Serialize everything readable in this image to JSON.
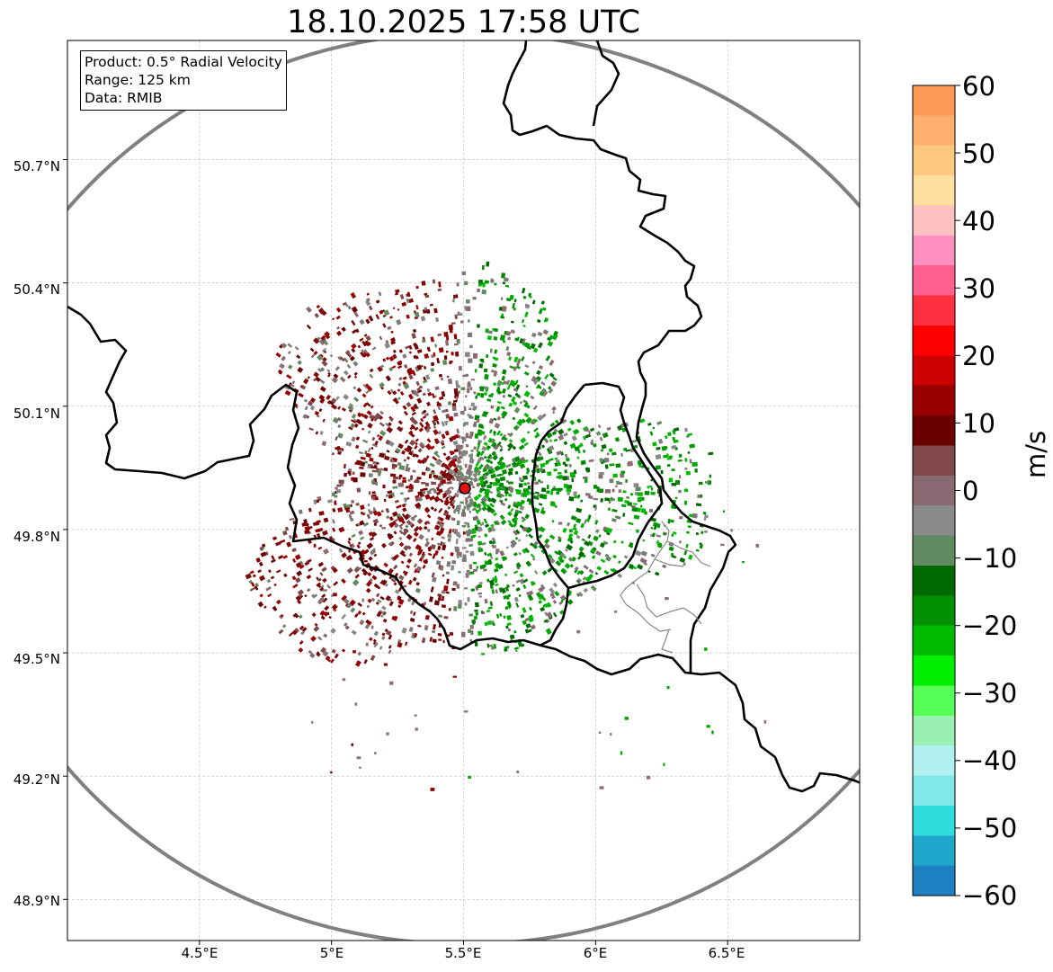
{
  "title": "18.10.2025 17:58 UTC",
  "info": {
    "product": "Product: 0.5° Radial Velocity",
    "range": "Range: 125 km",
    "source": "Data: RMIB"
  },
  "map": {
    "lat_range": [
      48.8,
      50.99
    ],
    "lon_range": [
      4.0,
      7.0
    ],
    "lat_ticks": [
      "50.7°N",
      "50.4°N",
      "50.1°N",
      "49.8°N",
      "49.5°N",
      "49.2°N",
      "48.9°N"
    ],
    "lat_values": [
      50.7,
      50.4,
      50.1,
      49.8,
      49.5,
      49.2,
      48.9
    ],
    "lon_ticks": [
      "4.5°E",
      "5°E",
      "5.5°E",
      "6°E",
      "6.5°E"
    ],
    "lon_values": [
      4.5,
      5.0,
      5.5,
      6.0,
      6.5
    ],
    "radar_site": {
      "lon": 5.505,
      "lat": 49.914
    },
    "range_km": 125
  },
  "colorbar": {
    "label": "m/s",
    "vmin": -60,
    "vmax": 60,
    "ticks": [
      "60",
      "50",
      "40",
      "30",
      "20",
      "10",
      "0",
      "−10",
      "−20",
      "−30",
      "−40",
      "−50",
      "−60"
    ],
    "tick_values": [
      60,
      50,
      40,
      30,
      20,
      10,
      0,
      -10,
      -20,
      -30,
      -40,
      -50,
      -60
    ],
    "colors_top_to_bottom": [
      "#ff9955",
      "#ffb070",
      "#ffc880",
      "#ffe0a0",
      "#ffc0c0",
      "#ff90c0",
      "#ff6090",
      "#ff3040",
      "#ff0000",
      "#cc0000",
      "#990000",
      "#6a0000",
      "#804848",
      "#8a6a72",
      "#8a8a8a",
      "#608a60",
      "#006a00",
      "#009000",
      "#00bb00",
      "#00ee00",
      "#55ff55",
      "#99f0b0",
      "#b0f0f0",
      "#80e8e8",
      "#30dddd",
      "#20a8cc",
      "#1e80c0"
    ]
  }
}
